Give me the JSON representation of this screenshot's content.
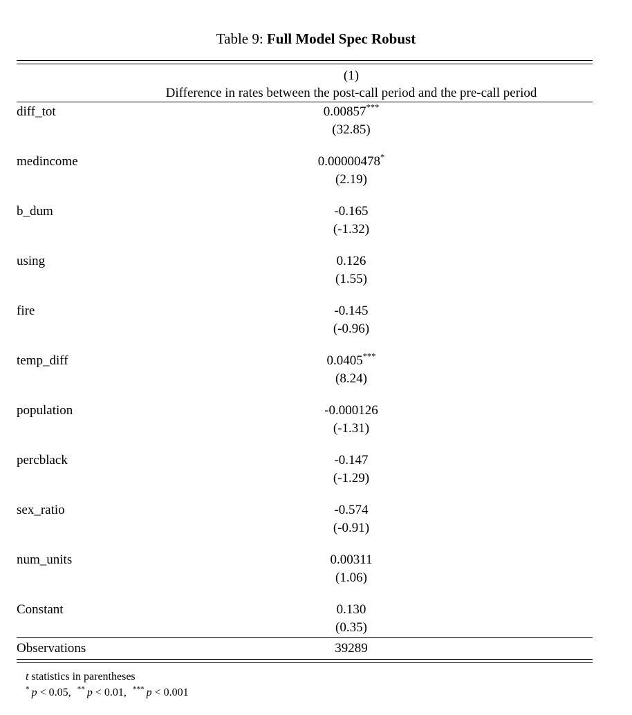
{
  "colors": {
    "background": "#ffffff",
    "text": "#000000",
    "rule": "#000000"
  },
  "caption": {
    "prefix": "Table 9: ",
    "title": "Full Model Spec Robust"
  },
  "table": {
    "column_header": "(1)",
    "column_subheader": "Difference in rates between the post-call period and the pre-call period",
    "rows": [
      {
        "label": "diff_tot",
        "estimate": "0.00857",
        "stars": "***",
        "tstat": "(32.85)"
      },
      {
        "label": "medincome",
        "estimate": "0.00000478",
        "stars": "*",
        "tstat": "(2.19)"
      },
      {
        "label": "b_dum",
        "estimate": "-0.165",
        "stars": "",
        "tstat": "(-1.32)"
      },
      {
        "label": "using",
        "estimate": "0.126",
        "stars": "",
        "tstat": "(1.55)"
      },
      {
        "label": "fire",
        "estimate": "-0.145",
        "stars": "",
        "tstat": "(-0.96)"
      },
      {
        "label": "temp_diff",
        "estimate": "0.0405",
        "stars": "***",
        "tstat": "(8.24)"
      },
      {
        "label": "population",
        "estimate": "-0.000126",
        "stars": "",
        "tstat": "(-1.31)"
      },
      {
        "label": "percblack",
        "estimate": "-0.147",
        "stars": "",
        "tstat": "(-1.29)"
      },
      {
        "label": "sex_ratio",
        "estimate": "-0.574",
        "stars": "",
        "tstat": "(-0.91)"
      },
      {
        "label": "num_units",
        "estimate": "0.00311",
        "stars": "",
        "tstat": "(1.06)"
      },
      {
        "label": "Constant",
        "estimate": "0.130",
        "stars": "",
        "tstat": "(0.35)"
      }
    ],
    "summary": {
      "label": "Observations",
      "value": "39289"
    }
  },
  "notes": {
    "tstat_symbol": "t",
    "tstat_text": " statistics in parentheses",
    "sig_levels": [
      {
        "stars": "*",
        "symbol": "p",
        "text": " < 0.05,"
      },
      {
        "stars": "**",
        "symbol": "p",
        "text": " < 0.01,"
      },
      {
        "stars": "***",
        "symbol": "p",
        "text": " < 0.001"
      }
    ]
  }
}
